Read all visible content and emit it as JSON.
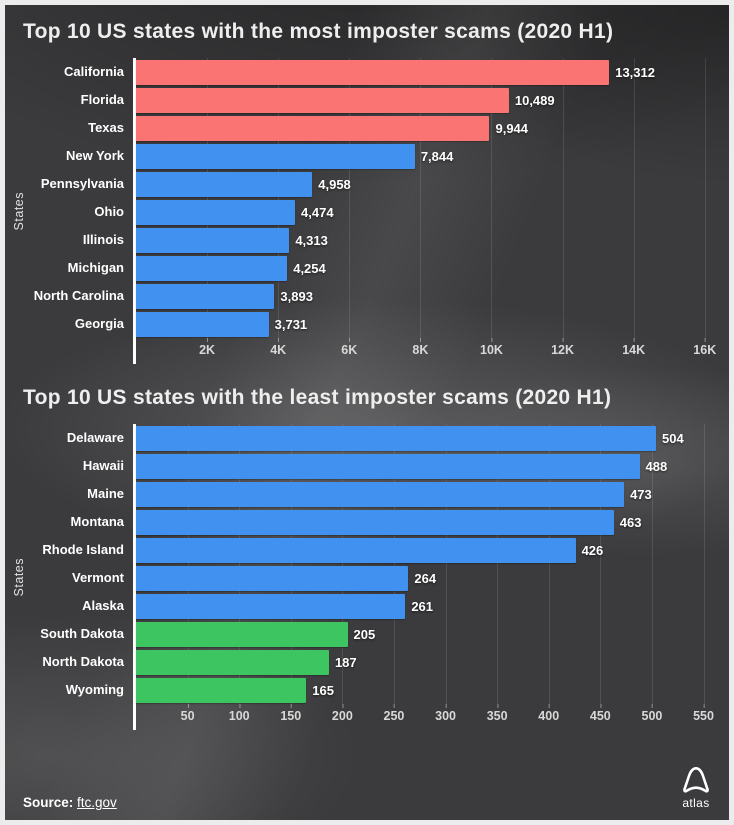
{
  "chart_data": [
    {
      "type": "bar",
      "orientation": "horizontal",
      "title": "Top 10 US states with the most imposter scams (2020 H1)",
      "xlabel": "",
      "ylabel": "States",
      "xlim": [
        0,
        16000
      ],
      "grid": true,
      "categories": [
        "California",
        "Florida",
        "Texas",
        "New York",
        "Pennsylvania",
        "Ohio",
        "Illinois",
        "Michigan",
        "North Carolina",
        "Georgia"
      ],
      "values": [
        13312,
        10489,
        9944,
        7844,
        4958,
        4474,
        4313,
        4254,
        3893,
        3731
      ],
      "value_labels": [
        "13,312",
        "10,489",
        "9,944",
        "7,844",
        "4,958",
        "4,474",
        "4,313",
        "4,254",
        "3,893",
        "3,731"
      ],
      "bar_colors": [
        "#fa7474",
        "#fa7474",
        "#fa7474",
        "#4191f1",
        "#4191f1",
        "#4191f1",
        "#4191f1",
        "#4191f1",
        "#4191f1",
        "#4191f1"
      ],
      "ticks": [
        {
          "label": "2K",
          "value": 2000
        },
        {
          "label": "4K",
          "value": 4000
        },
        {
          "label": "6K",
          "value": 6000
        },
        {
          "label": "8K",
          "value": 8000
        },
        {
          "label": "10K",
          "value": 10000
        },
        {
          "label": "12K",
          "value": 12000
        },
        {
          "label": "14K",
          "value": 14000
        },
        {
          "label": "16K",
          "value": 16000
        }
      ],
      "xmax_render": 16400
    },
    {
      "type": "bar",
      "orientation": "horizontal",
      "title": "Top 10 US states with the least imposter scams (2020 H1)",
      "xlabel": "",
      "ylabel": "States",
      "xlim": [
        0,
        550
      ],
      "grid": true,
      "categories": [
        "Delaware",
        "Hawaii",
        "Maine",
        "Montana",
        "Rhode Island",
        "Vermont",
        "Alaska",
        "South Dakota",
        "North Dakota",
        "Wyoming"
      ],
      "values": [
        504,
        488,
        473,
        463,
        426,
        264,
        261,
        205,
        187,
        165
      ],
      "value_labels": [
        "504",
        "488",
        "473",
        "463",
        "426",
        "264",
        "261",
        "205",
        "187",
        "165"
      ],
      "bar_colors": [
        "#4191f1",
        "#4191f1",
        "#4191f1",
        "#4191f1",
        "#4191f1",
        "#4191f1",
        "#4191f1",
        "#3dc562",
        "#3dc562",
        "#3dc562"
      ],
      "ticks": [
        {
          "label": "50",
          "value": 50
        },
        {
          "label": "100",
          "value": 100
        },
        {
          "label": "150",
          "value": 150
        },
        {
          "label": "200",
          "value": 200
        },
        {
          "label": "250",
          "value": 250
        },
        {
          "label": "300",
          "value": 300
        },
        {
          "label": "350",
          "value": 350
        },
        {
          "label": "400",
          "value": 400
        },
        {
          "label": "450",
          "value": 450
        },
        {
          "label": "500",
          "value": 500
        },
        {
          "label": "550",
          "value": 550
        }
      ],
      "xmax_render": 565
    }
  ],
  "footer": {
    "source_label": "Source:",
    "source_link": "ftc.gov",
    "logo_text": "atlas"
  },
  "colors": {
    "red": "#fa7474",
    "blue": "#4191f1",
    "green": "#3dc562",
    "background": "#3b3b3d",
    "axis_line": "#ffffff",
    "tick_text": "#d8d8d8"
  }
}
